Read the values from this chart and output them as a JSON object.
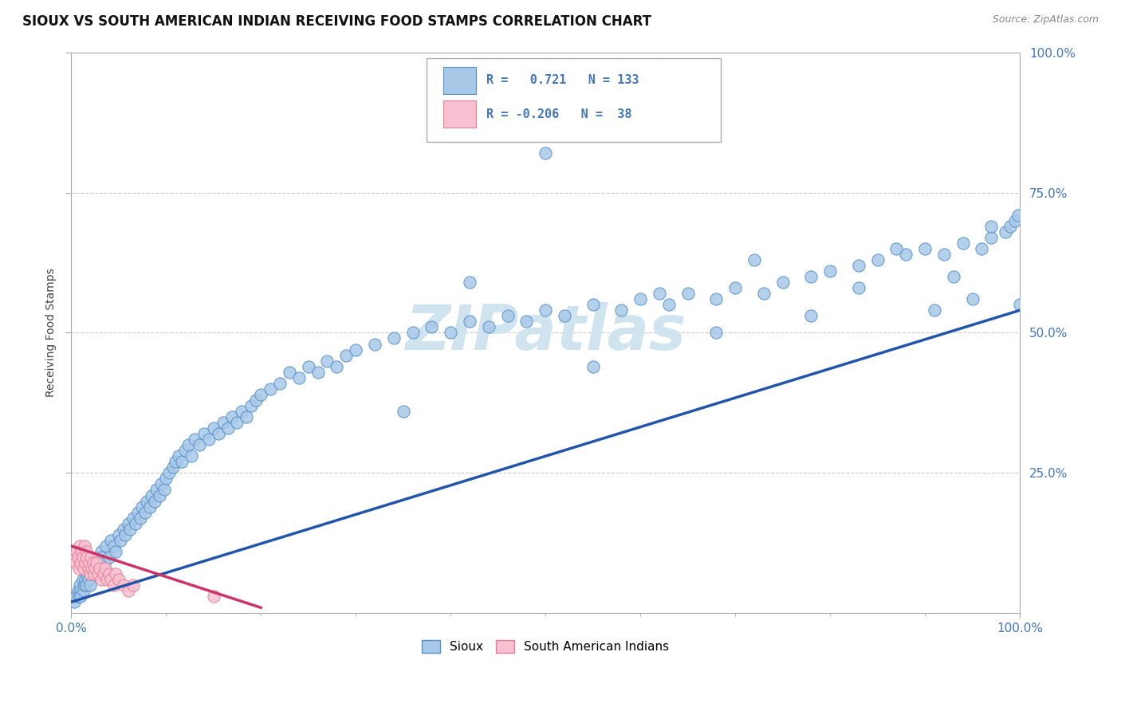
{
  "title": "SIOUX VS SOUTH AMERICAN INDIAN RECEIVING FOOD STAMPS CORRELATION CHART",
  "source_text": "Source: ZipAtlas.com",
  "ylabel": "Receiving Food Stamps",
  "xlim": [
    0,
    1
  ],
  "ylim": [
    0,
    1
  ],
  "sioux_R": 0.721,
  "sioux_N": 133,
  "southam_R": -0.206,
  "southam_N": 38,
  "sioux_color": "#a8c8e8",
  "sioux_edge_color": "#5590c8",
  "sioux_line_color": "#2255aa",
  "southam_color": "#f8c0d0",
  "southam_edge_color": "#e08098",
  "southam_line_color": "#cc3366",
  "background_color": "#ffffff",
  "grid_color": "#cccccc",
  "watermark_color": "#d0e4f0",
  "title_fontsize": 12,
  "axis_label_fontsize": 10,
  "tick_label_color": "#4477bb",
  "sioux_slope": 0.52,
  "sioux_intercept": 0.02,
  "southam_slope": -0.55,
  "southam_intercept": 0.12,
  "sioux_x": [
    0.003,
    0.005,
    0.007,
    0.008,
    0.009,
    0.01,
    0.01,
    0.012,
    0.013,
    0.014,
    0.015,
    0.016,
    0.017,
    0.018,
    0.02,
    0.021,
    0.022,
    0.024,
    0.025,
    0.027,
    0.028,
    0.03,
    0.032,
    0.033,
    0.035,
    0.037,
    0.04,
    0.042,
    0.045,
    0.047,
    0.05,
    0.052,
    0.055,
    0.057,
    0.06,
    0.062,
    0.065,
    0.068,
    0.07,
    0.073,
    0.075,
    0.078,
    0.08,
    0.083,
    0.085,
    0.088,
    0.09,
    0.093,
    0.095,
    0.098,
    0.1,
    0.103,
    0.107,
    0.11,
    0.113,
    0.117,
    0.12,
    0.123,
    0.127,
    0.13,
    0.135,
    0.14,
    0.145,
    0.15,
    0.155,
    0.16,
    0.165,
    0.17,
    0.175,
    0.18,
    0.185,
    0.19,
    0.195,
    0.2,
    0.21,
    0.22,
    0.23,
    0.24,
    0.25,
    0.26,
    0.27,
    0.28,
    0.29,
    0.3,
    0.32,
    0.34,
    0.36,
    0.38,
    0.4,
    0.42,
    0.44,
    0.46,
    0.48,
    0.5,
    0.52,
    0.55,
    0.58,
    0.6,
    0.63,
    0.65,
    0.68,
    0.7,
    0.73,
    0.75,
    0.78,
    0.8,
    0.83,
    0.85,
    0.88,
    0.9,
    0.92,
    0.94,
    0.96,
    0.97,
    0.985,
    0.99,
    0.995,
    0.998,
    1.0,
    0.35,
    0.42,
    0.55,
    0.62,
    0.68,
    0.72,
    0.78,
    0.83,
    0.87,
    0.91,
    0.93,
    0.95,
    0.97,
    0.5
  ],
  "sioux_y": [
    0.02,
    0.03,
    0.04,
    0.03,
    0.05,
    0.04,
    0.03,
    0.06,
    0.04,
    0.05,
    0.06,
    0.05,
    0.07,
    0.06,
    0.05,
    0.08,
    0.07,
    0.09,
    0.08,
    0.07,
    0.1,
    0.09,
    0.11,
    0.1,
    0.09,
    0.12,
    0.1,
    0.13,
    0.12,
    0.11,
    0.14,
    0.13,
    0.15,
    0.14,
    0.16,
    0.15,
    0.17,
    0.16,
    0.18,
    0.17,
    0.19,
    0.18,
    0.2,
    0.19,
    0.21,
    0.2,
    0.22,
    0.21,
    0.23,
    0.22,
    0.24,
    0.25,
    0.26,
    0.27,
    0.28,
    0.27,
    0.29,
    0.3,
    0.28,
    0.31,
    0.3,
    0.32,
    0.31,
    0.33,
    0.32,
    0.34,
    0.33,
    0.35,
    0.34,
    0.36,
    0.35,
    0.37,
    0.38,
    0.39,
    0.4,
    0.41,
    0.43,
    0.42,
    0.44,
    0.43,
    0.45,
    0.44,
    0.46,
    0.47,
    0.48,
    0.49,
    0.5,
    0.51,
    0.5,
    0.52,
    0.51,
    0.53,
    0.52,
    0.54,
    0.53,
    0.55,
    0.54,
    0.56,
    0.55,
    0.57,
    0.56,
    0.58,
    0.57,
    0.59,
    0.6,
    0.61,
    0.62,
    0.63,
    0.64,
    0.65,
    0.64,
    0.66,
    0.65,
    0.67,
    0.68,
    0.69,
    0.7,
    0.71,
    0.55,
    0.36,
    0.59,
    0.44,
    0.57,
    0.5,
    0.63,
    0.53,
    0.58,
    0.65,
    0.54,
    0.6,
    0.56,
    0.69,
    0.82
  ],
  "southam_x": [
    0.003,
    0.005,
    0.006,
    0.007,
    0.008,
    0.009,
    0.01,
    0.011,
    0.012,
    0.013,
    0.014,
    0.015,
    0.016,
    0.017,
    0.018,
    0.019,
    0.02,
    0.021,
    0.022,
    0.023,
    0.024,
    0.025,
    0.027,
    0.028,
    0.03,
    0.032,
    0.034,
    0.036,
    0.038,
    0.04,
    0.042,
    0.045,
    0.047,
    0.05,
    0.055,
    0.06,
    0.065,
    0.15
  ],
  "southam_y": [
    0.1,
    0.09,
    0.11,
    0.1,
    0.08,
    0.12,
    0.09,
    0.11,
    0.1,
    0.08,
    0.12,
    0.09,
    0.11,
    0.1,
    0.08,
    0.09,
    0.07,
    0.1,
    0.08,
    0.09,
    0.07,
    0.08,
    0.09,
    0.07,
    0.08,
    0.06,
    0.07,
    0.08,
    0.06,
    0.07,
    0.06,
    0.05,
    0.07,
    0.06,
    0.05,
    0.04,
    0.05,
    0.03
  ]
}
